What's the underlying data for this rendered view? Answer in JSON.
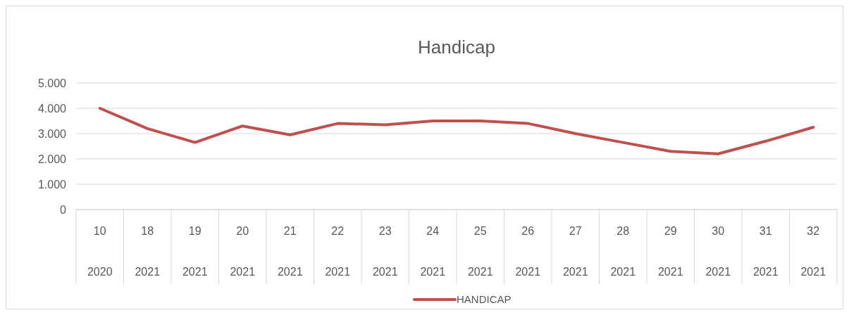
{
  "chart_data": {
    "type": "line",
    "title": "Handicap",
    "categories": [
      "10\n2020",
      "18\n2021",
      "19\n2021",
      "20\n2021",
      "21\n2021",
      "22\n2021",
      "23\n2021",
      "24\n2021",
      "25\n2021",
      "26\n2021",
      "27\n2021",
      "28\n2021",
      "29\n2021",
      "30\n2021",
      "31\n2021",
      "32\n2021"
    ],
    "series": [
      {
        "name": "HANDICAP",
        "color": "#c0504d",
        "values": [
          4000,
          3200,
          2650,
          3300,
          2950,
          3400,
          3350,
          3500,
          3500,
          3400,
          3000,
          2650,
          2300,
          2200,
          2700,
          3250
        ]
      }
    ],
    "ylim": [
      0,
      5000
    ],
    "yticks": [
      {
        "value": 0,
        "label": "0"
      },
      {
        "value": 1000,
        "label": "1.000"
      },
      {
        "value": 2000,
        "label": "2.000"
      },
      {
        "value": 3000,
        "label": "3.000"
      },
      {
        "value": 4000,
        "label": "4.000"
      },
      {
        "value": 5000,
        "label": "5.000"
      }
    ],
    "grid": "y",
    "legend": "bottom",
    "marker": "none",
    "line_style": "solid"
  }
}
